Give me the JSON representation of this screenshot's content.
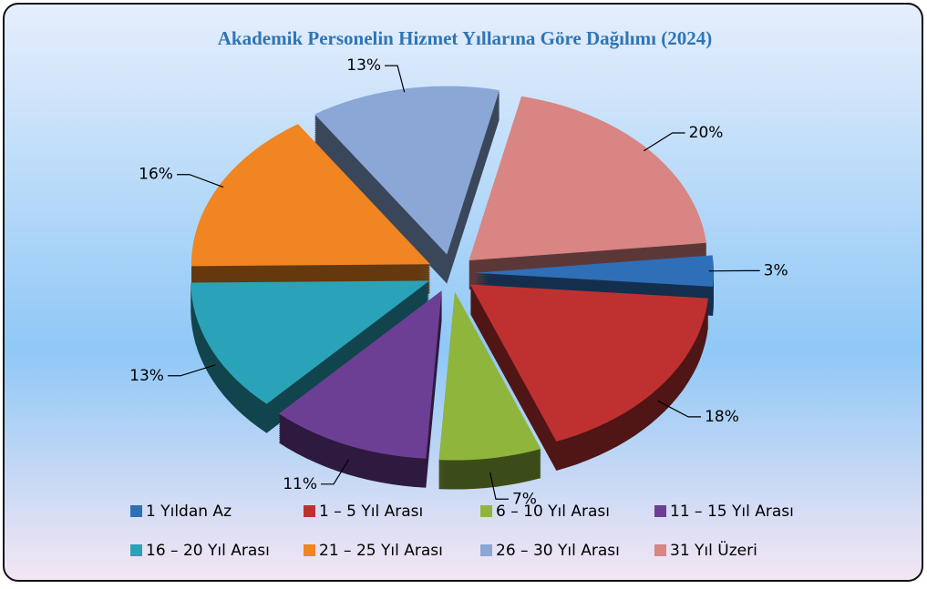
{
  "chart_data": {
    "type": "pie",
    "title": "Akademik Personelin Hizmet Yıllarına Göre Dağılımı (2024)",
    "categories": [
      "1 Yıldan Az",
      "1 – 5 Yıl Arası",
      "6 – 10 Yıl Arası",
      "11 – 15 Yıl Arası",
      "16 – 20 Yıl Arası",
      "21 – 25 Yıl Arası",
      "26 – 30 Yıl Arası",
      "31 Yıl Üzeri"
    ],
    "values": [
      3,
      18,
      7,
      11,
      13,
      16,
      13,
      20
    ],
    "value_labels": [
      "3%",
      "18%",
      "7%",
      "11%",
      "13%",
      "16%",
      "13%",
      "20%"
    ],
    "colors": [
      "#2f6fb8",
      "#bf3131",
      "#8fb53c",
      "#6c3f94",
      "#2aa3b8",
      "#f08522",
      "#8aa7d6",
      "#d98583"
    ],
    "legend": "bottom"
  }
}
